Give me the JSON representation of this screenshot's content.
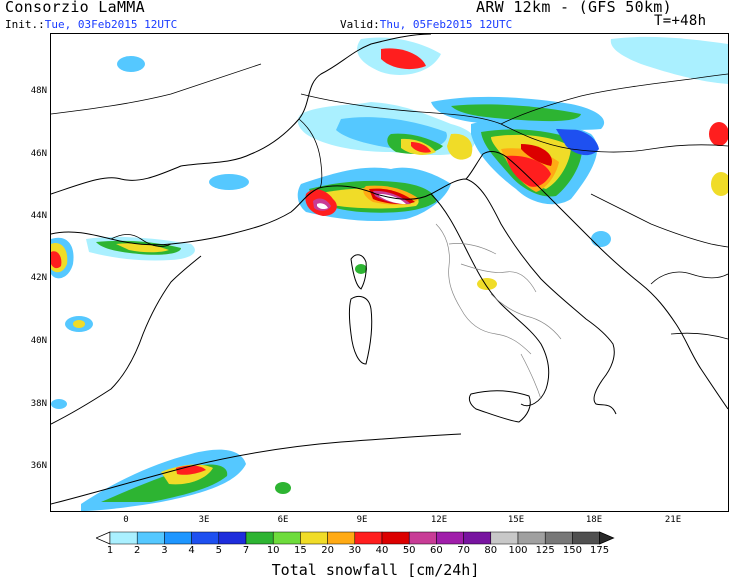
{
  "header": {
    "producer": "Consorzio LaMMA",
    "model": "ARW 12km - (GFS 50km)",
    "init_label": "Init.:",
    "init_value": "Tue, 03Feb2015 12UTC",
    "valid_label": "Valid:",
    "valid_value": "Thu, 05Feb2015 12UTC",
    "lead_time": "T=+48h"
  },
  "axes": {
    "lat_labels": [
      "48N",
      "46N",
      "44N",
      "42N",
      "40N",
      "38N",
      "36N"
    ],
    "lon_labels": [
      "0",
      "3E",
      "6E",
      "9E",
      "12E",
      "15E",
      "18E",
      "21E"
    ]
  },
  "colorbar": {
    "title": "Total snowfall [cm/24h]",
    "levels": [
      "1",
      "2",
      "3",
      "4",
      "5",
      "7",
      "10",
      "15",
      "20",
      "30",
      "40",
      "50",
      "60",
      "70",
      "80",
      "100",
      "125",
      "150",
      "175"
    ],
    "colors": [
      "#aaf0ff",
      "#55c8ff",
      "#1e96ff",
      "#1e50f0",
      "#1e2ddc",
      "#2db432",
      "#6edc3c",
      "#f0dc28",
      "#ffaa14",
      "#ff1e1e",
      "#dc0000",
      "#c83c96",
      "#a01eaa",
      "#7814a0",
      "#c8c8c8",
      "#a0a0a0",
      "#787878",
      "#505050",
      "#282828"
    ]
  },
  "colors": {
    "header_blue": "#1a3cff",
    "coastline": "#000000",
    "borders": "#000000",
    "regions": "#888888"
  }
}
